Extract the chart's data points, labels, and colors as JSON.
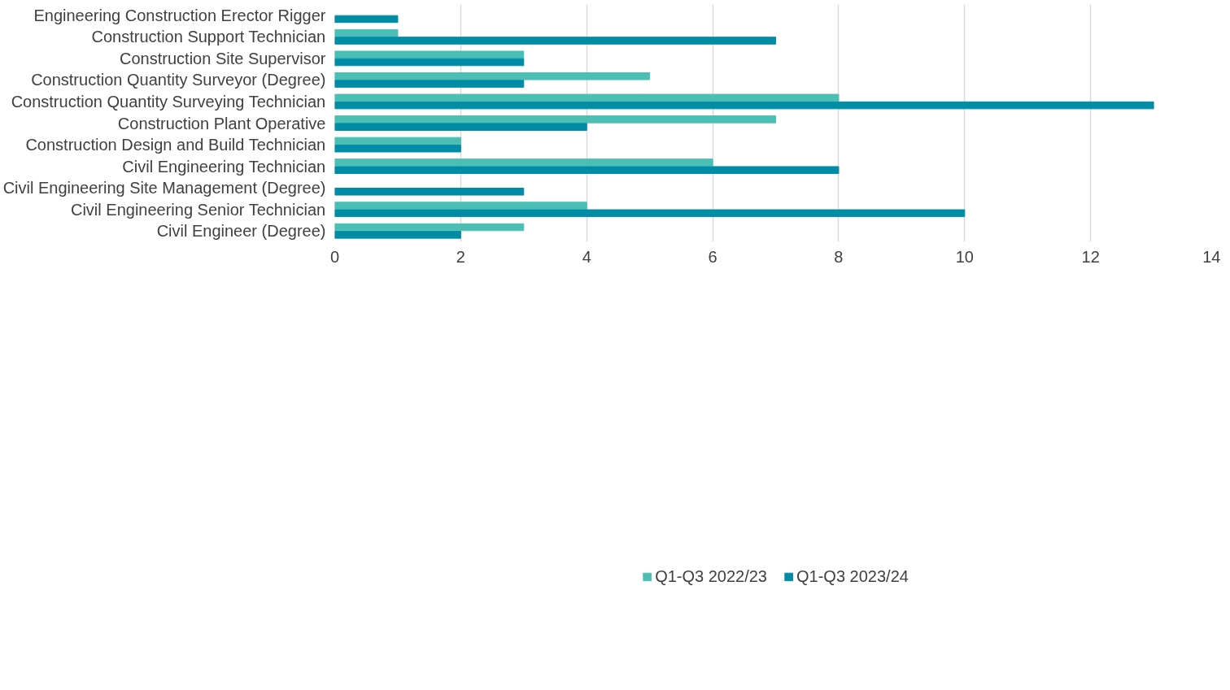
{
  "chart_data": {
    "type": "bar",
    "orientation": "horizontal",
    "categories": [
      "Engineering Construction Erector Rigger",
      "Construction Support Technician",
      "Construction Site Supervisor",
      "Construction Quantity Surveyor (Degree)",
      "Construction Quantity Surveying Technician",
      "Construction Plant Operative",
      "Construction Design and Build Technician",
      "Civil Engineering Technician",
      "Civil Engineering Site Management (Degree)",
      "Civil Engineering Senior Technician",
      "Civil Engineer (Degree)"
    ],
    "series": [
      {
        "name": "Q1-Q3 2022/23",
        "color": "#4bbfb4",
        "values": [
          null,
          1,
          3,
          5,
          8,
          7,
          2,
          6,
          null,
          4,
          3
        ]
      },
      {
        "name": "Q1-Q3 2023/24",
        "color": "#008ca5",
        "values": [
          1,
          7,
          3,
          3,
          13,
          4,
          2,
          8,
          3,
          10,
          2
        ]
      }
    ],
    "xlim": [
      0,
      14
    ],
    "xticks": [
      0,
      2,
      4,
      6,
      8,
      10,
      12,
      14
    ],
    "grid": "x",
    "legend": "bottom"
  }
}
